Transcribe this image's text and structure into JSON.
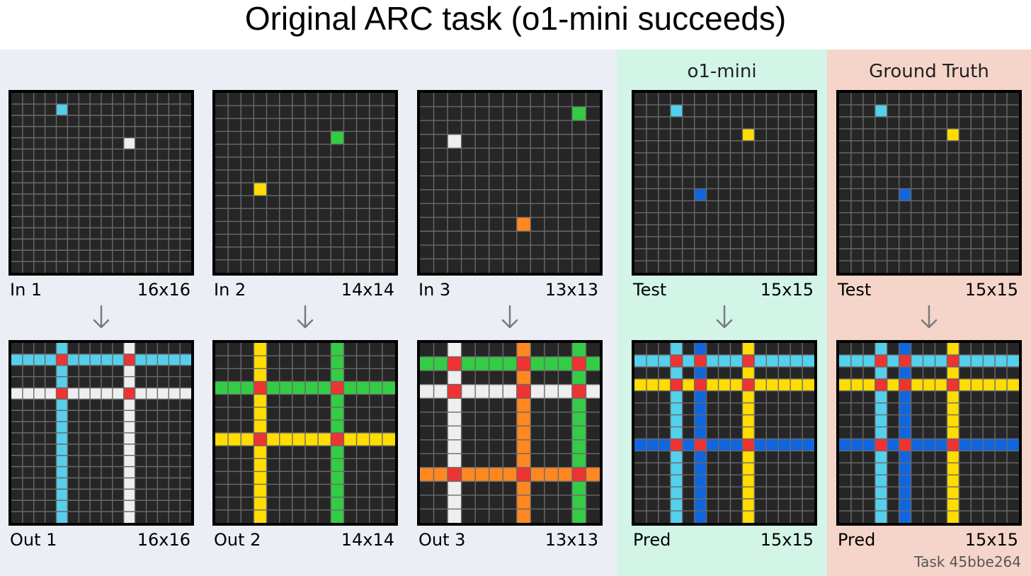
{
  "title": "Original ARC task (o1-mini succeeds)",
  "panels": {
    "pred_header": "o1-mini",
    "truth_header": "Ground Truth"
  },
  "task_label": "Task 45bbe264",
  "colors": {
    "background_cell": "#262626",
    "grid_line": "#6a6a6a",
    "cyan": "#55d0ec",
    "white": "#eeeeee",
    "green": "#33cc44",
    "yellow": "#ffdd00",
    "orange": "#ff8822",
    "blue": "#1166dd",
    "red": "#ee3333"
  },
  "grids": [
    {
      "key": "in1",
      "label": "In 1",
      "size_label": "16x16",
      "size": 16,
      "points": [
        [
          1,
          4,
          "cyan"
        ],
        [
          4,
          10,
          "white"
        ]
      ],
      "crossing": false
    },
    {
      "key": "in2",
      "label": "In 2",
      "size_label": "14x14",
      "size": 14,
      "points": [
        [
          3,
          9,
          "green"
        ],
        [
          7,
          3,
          "yellow"
        ]
      ],
      "crossing": false
    },
    {
      "key": "in3",
      "label": "In 3",
      "size_label": "13x13",
      "size": 13,
      "points": [
        [
          1,
          11,
          "green"
        ],
        [
          3,
          2,
          "white"
        ],
        [
          9,
          7,
          "orange"
        ]
      ],
      "crossing": false
    },
    {
      "key": "test_pred",
      "label": "Test",
      "size_label": "15x15",
      "size": 15,
      "points": [
        [
          1,
          3,
          "cyan"
        ],
        [
          3,
          9,
          "yellow"
        ],
        [
          8,
          5,
          "blue"
        ]
      ],
      "crossing": false
    },
    {
      "key": "test_truth",
      "label": "Test",
      "size_label": "15x15",
      "size": 15,
      "points": [
        [
          1,
          3,
          "cyan"
        ],
        [
          3,
          9,
          "yellow"
        ],
        [
          8,
          5,
          "blue"
        ]
      ],
      "crossing": false
    },
    {
      "key": "out1",
      "label": "Out 1",
      "size_label": "16x16",
      "size": 16,
      "points": [
        [
          1,
          4,
          "cyan"
        ],
        [
          4,
          10,
          "white"
        ]
      ],
      "crossing": true
    },
    {
      "key": "out2",
      "label": "Out 2",
      "size_label": "14x14",
      "size": 14,
      "points": [
        [
          3,
          9,
          "green"
        ],
        [
          7,
          3,
          "yellow"
        ]
      ],
      "crossing": true
    },
    {
      "key": "out3",
      "label": "Out 3",
      "size_label": "13x13",
      "size": 13,
      "points": [
        [
          1,
          11,
          "green"
        ],
        [
          3,
          2,
          "white"
        ],
        [
          9,
          7,
          "orange"
        ]
      ],
      "crossing": true
    },
    {
      "key": "pred",
      "label": "Pred",
      "size_label": "15x15",
      "size": 15,
      "points": [
        [
          1,
          3,
          "cyan"
        ],
        [
          3,
          9,
          "yellow"
        ],
        [
          8,
          5,
          "blue"
        ]
      ],
      "crossing": true
    },
    {
      "key": "truth",
      "label": "Pred",
      "size_label": "15x15",
      "size": 15,
      "points": [
        [
          1,
          3,
          "cyan"
        ],
        [
          3,
          9,
          "yellow"
        ],
        [
          8,
          5,
          "blue"
        ]
      ],
      "crossing": true
    }
  ]
}
